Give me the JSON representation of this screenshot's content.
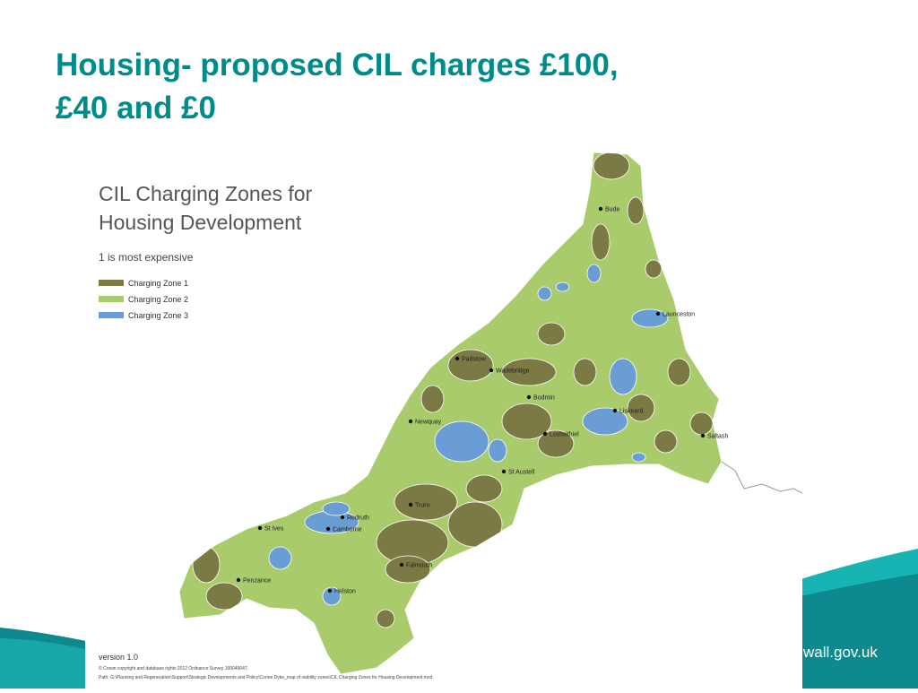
{
  "header": {
    "title_line1": "Housing- proposed CIL charges £100,",
    "title_line2": "£40 and £0"
  },
  "map": {
    "title_line1": "CIL Charging Zones for",
    "title_line2": "Housing Development",
    "subtitle": "1 is most expensive",
    "legend": [
      {
        "label": "Charging Zone 1",
        "color": "#7b7a45"
      },
      {
        "label": "Charging Zone 2",
        "color": "#a9cb6b"
      },
      {
        "label": "Charging Zone 3",
        "color": "#6a9dd4"
      }
    ],
    "towns": [
      "Bude",
      "Launceston",
      "Padstow",
      "Wadebridge",
      "Bodmin",
      "Liskeard",
      "Newquay",
      "Lostwithiel",
      "Saltash",
      "St Austell",
      "Truro",
      "Redruth",
      "St Ives",
      "Camborne",
      "Falmouth",
      "Penzance",
      "Helston"
    ],
    "version": "version 1.0",
    "copyright": "© Crown copyright and database rights 2012 Ordnance Survey 100049047.",
    "path": "Path: G:\\Planning and Regeneration\\Support\\Strategic Developments and Policy\\Corine Dyke_map of viability zones\\CIL Charging Zones for Housing Development.mxd"
  },
  "footer": {
    "url": "wall.gov.uk"
  }
}
